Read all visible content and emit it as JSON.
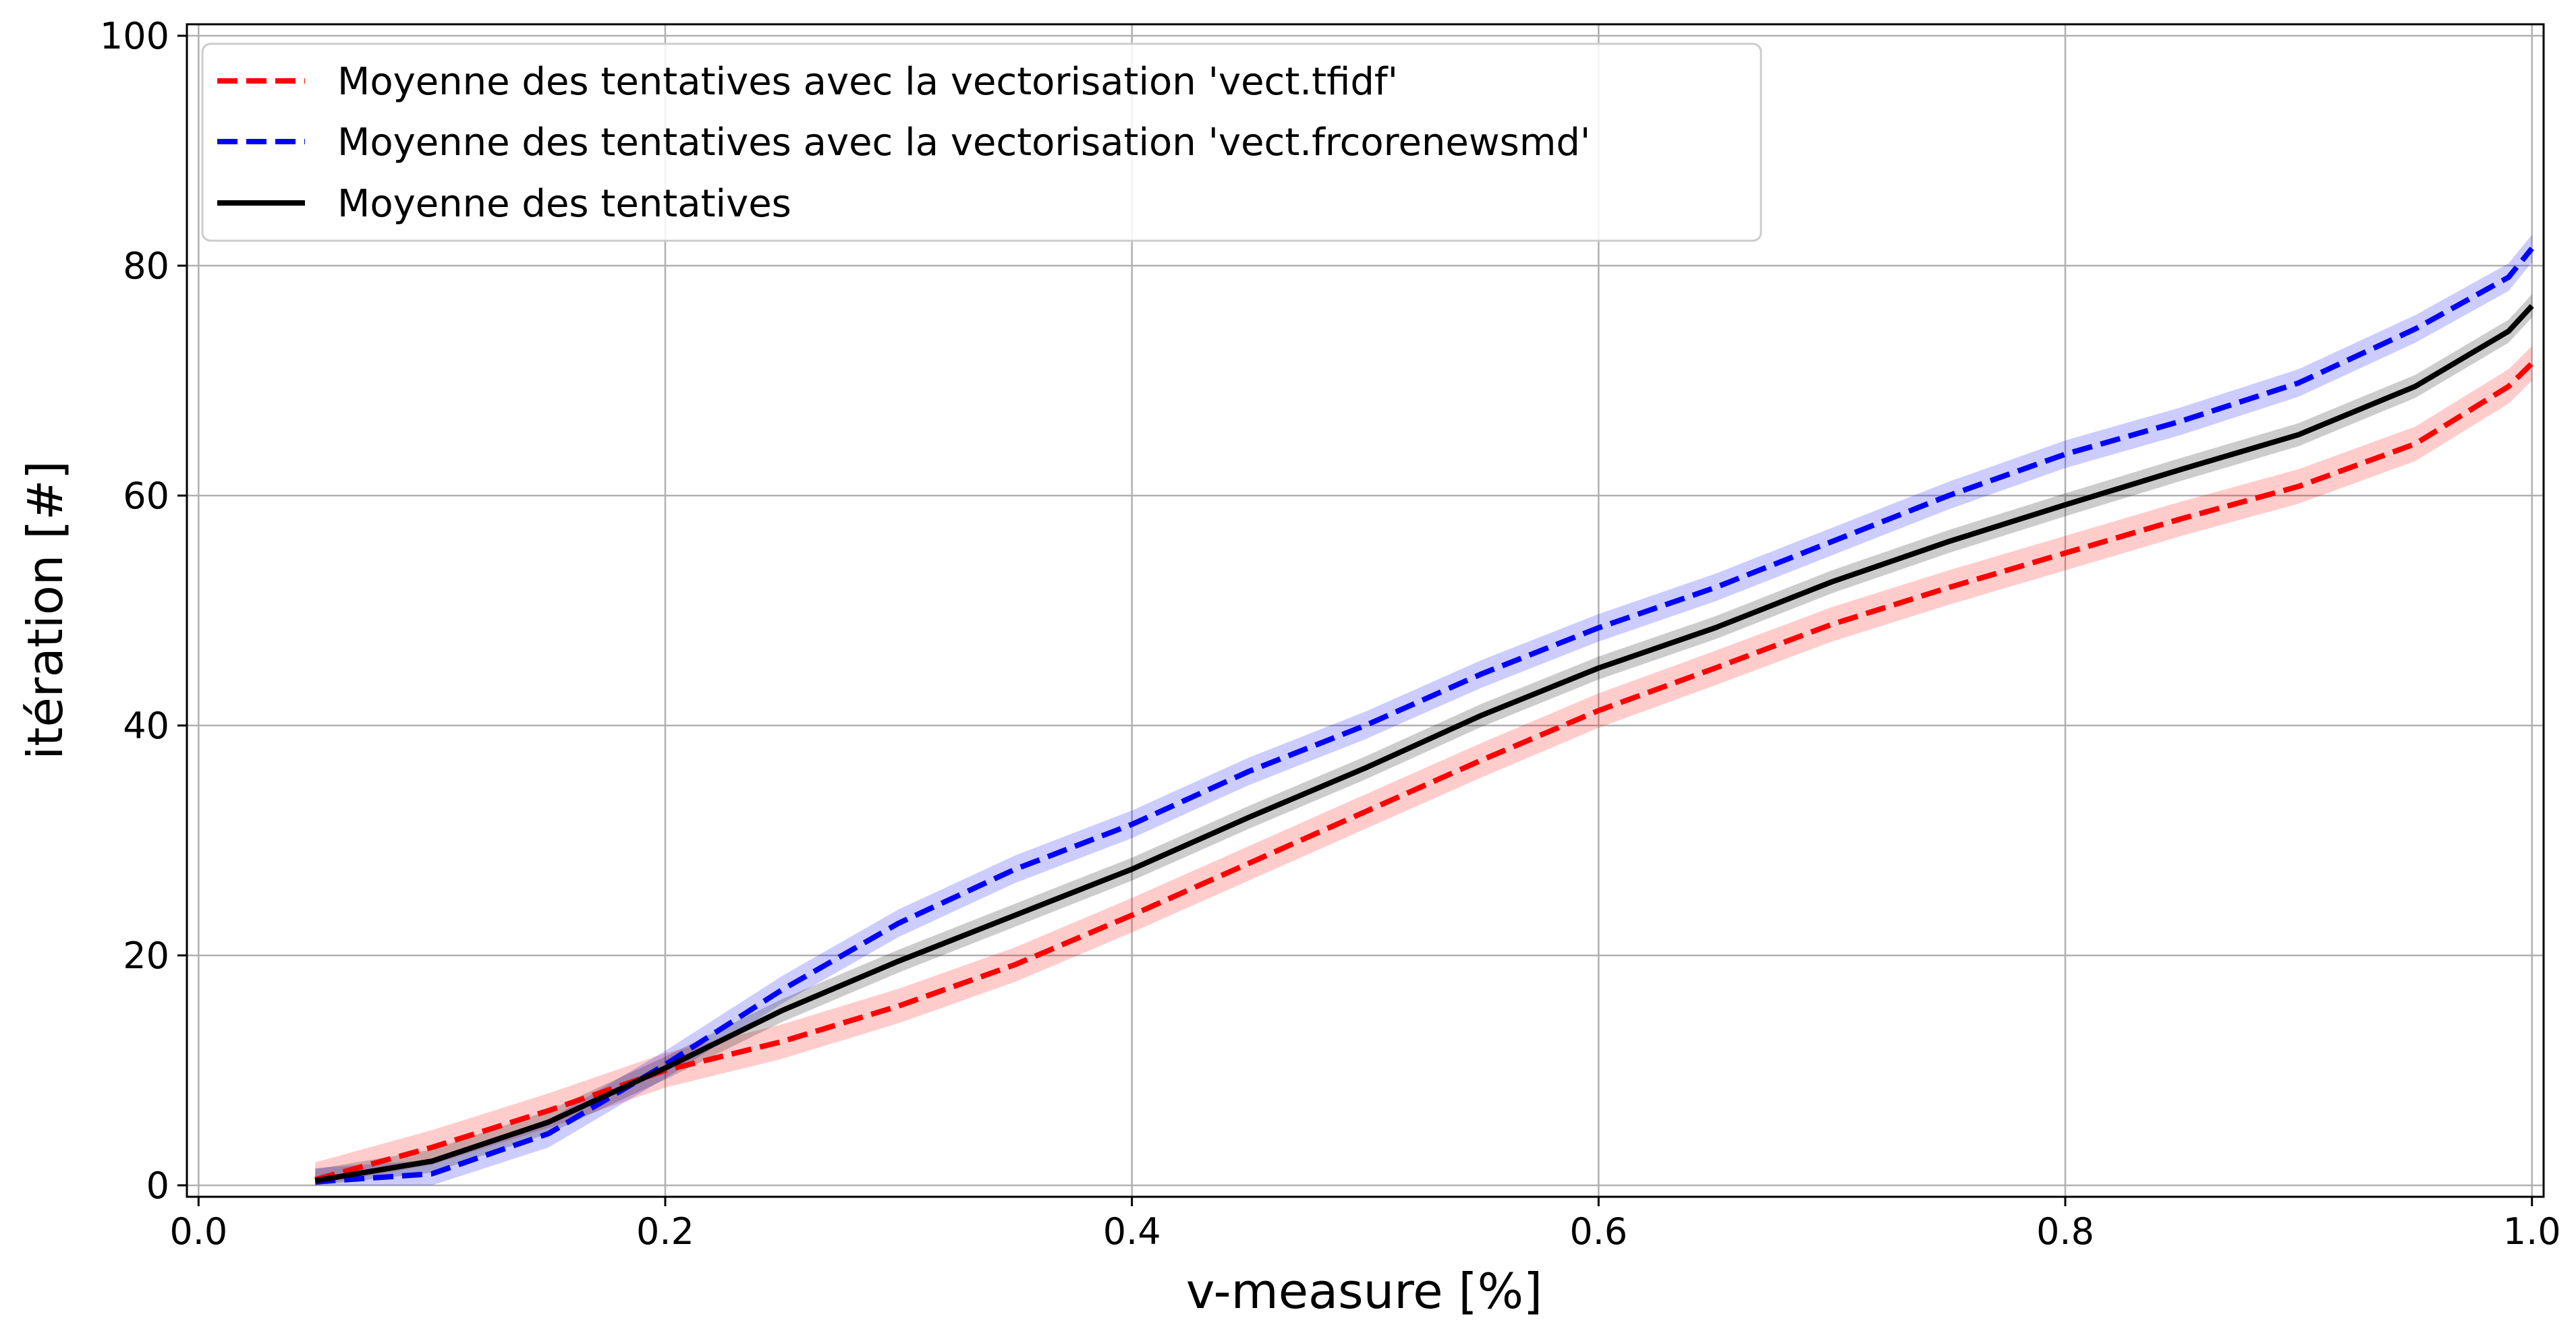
{
  "chart_data": {
    "type": "line",
    "xlabel": "v-measure [%]",
    "ylabel": "itération [#]",
    "xlim": [
      -0.005,
      1.005
    ],
    "ylim": [
      -1,
      101
    ],
    "xticks": [
      0.0,
      0.2,
      0.4,
      0.6,
      0.8,
      1.0
    ],
    "xtick_labels": [
      "0.0",
      "0.2",
      "0.4",
      "0.6",
      "0.8",
      "1.0"
    ],
    "yticks": [
      0,
      20,
      40,
      60,
      80,
      100
    ],
    "ytick_labels": [
      "0",
      "20",
      "40",
      "60",
      "80",
      "100"
    ],
    "grid": true,
    "legend_position": "top-left",
    "x": [
      0.05,
      0.1,
      0.15,
      0.2,
      0.25,
      0.3,
      0.35,
      0.4,
      0.45,
      0.5,
      0.55,
      0.6,
      0.65,
      0.7,
      0.75,
      0.8,
      0.85,
      0.9,
      0.95,
      0.99,
      1.0
    ],
    "series": [
      {
        "name": "Moyenne des tentatives avec la vectorisation 'vect.tfidf'",
        "color": "#ff0000",
        "linestyle": "dashed",
        "values": [
          0.5,
          3.3,
          6.5,
          10.0,
          12.5,
          15.6,
          19.2,
          23.5,
          28.0,
          32.5,
          37.0,
          41.3,
          45.0,
          48.8,
          52.0,
          55.0,
          58.0,
          60.8,
          64.5,
          69.5,
          71.5
        ],
        "band": 1.5
      },
      {
        "name": "Moyenne des tentatives avec la vectorisation 'vect.frcorenewsmd'",
        "color": "#0000ff",
        "linestyle": "dashed",
        "values": [
          0.3,
          1.0,
          4.5,
          10.5,
          17.0,
          22.8,
          27.5,
          31.4,
          36.0,
          40.0,
          44.5,
          48.5,
          52.0,
          56.0,
          60.0,
          63.6,
          66.5,
          69.8,
          74.5,
          79.0,
          81.5
        ],
        "band": 1.2
      },
      {
        "name": "Moyenne des tentatives",
        "color": "#000000",
        "linestyle": "solid",
        "values": [
          0.4,
          2.1,
          5.5,
          10.2,
          15.2,
          19.5,
          23.5,
          27.5,
          32.0,
          36.3,
          40.9,
          45.0,
          48.5,
          52.5,
          56.0,
          59.2,
          62.3,
          65.3,
          69.5,
          74.3,
          76.5
        ],
        "band": 1.0
      }
    ]
  }
}
